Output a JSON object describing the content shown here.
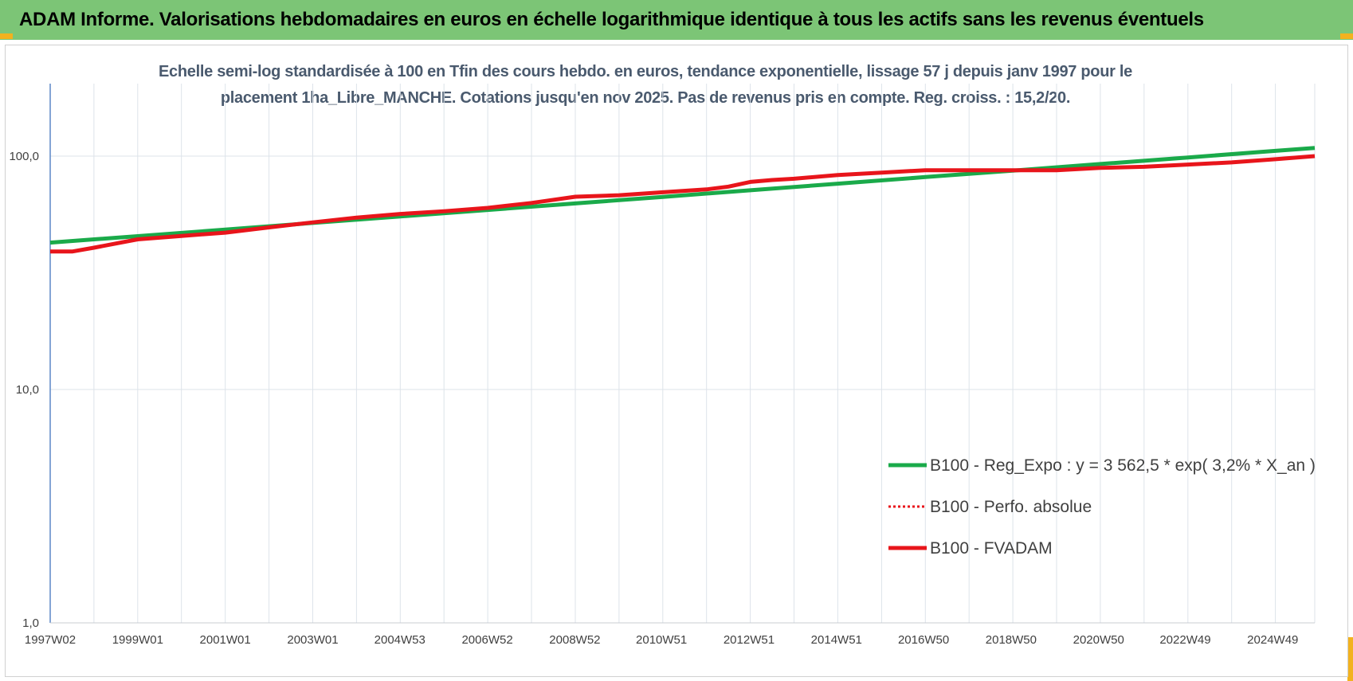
{
  "header": {
    "title": "ADAM Informe. Valorisations hebdomadaires en euros en échelle logarithmique identique à tous les actifs sans les revenus éventuels"
  },
  "colors": {
    "header_bg": "#7cc576",
    "corner_accent": "#f2b21f",
    "trend": "#1aaa4a",
    "fvadam": "#e8151b",
    "perfo": "#e8151b",
    "grid": "#dde3ea",
    "axis": "#5b87c7"
  },
  "chart_data": {
    "type": "line",
    "title": "Echelle semi-log standardisée à 100 en Tfin des cours hebdo. en euros, tendance exponentielle, lissage 57 j depuis janv 1997 pour le placement 1ha_Libre_MANCHE. Cotations jusqu'en nov 2025. Pas de revenus pris en compte. Reg. croiss. : 15,2/20.",
    "xlabel": "",
    "ylabel": "",
    "y_scale": "log",
    "ylim": [
      1,
      200
    ],
    "y_ticks": [
      1,
      10,
      100
    ],
    "y_tick_labels": [
      "1,0",
      "10,0",
      "100,0"
    ],
    "x_range": [
      1997.0,
      2025.9
    ],
    "x_ticks": [
      1997.0,
      1999.0,
      2001.0,
      2003.0,
      2004.99,
      2006.99,
      2008.99,
      2010.97,
      2012.97,
      2014.97,
      2016.96,
      2018.96,
      2020.96,
      2022.94,
      2024.94
    ],
    "x_tick_labels": [
      "1997W02",
      "1999W01",
      "2001W01",
      "2003W01",
      "2004W53",
      "2006W52",
      "2008W52",
      "2010W51",
      "2012W51",
      "2014W51",
      "2016W50",
      "2018W50",
      "2020W50",
      "2022W49",
      "2024W49"
    ],
    "grid": true,
    "legend_position": "bottom-right",
    "series": [
      {
        "name": "B100 - Reg_Expo : y = 3 562,5 * exp( 3,2% *  X_an )",
        "style": "solid-thin",
        "color": "#1aaa4a",
        "x": [
          1997.0,
          1999.0,
          2001.0,
          2003.0,
          2005.0,
          2007.0,
          2009.0,
          2011.0,
          2013.0,
          2015.0,
          2017.0,
          2019.0,
          2021.0,
          2023.0,
          2025.0,
          2025.9
        ],
        "values": [
          42.6,
          45.4,
          48.4,
          51.7,
          55.1,
          58.8,
          62.7,
          66.9,
          71.4,
          76.2,
          81.3,
          86.7,
          92.5,
          98.7,
          105.3,
          108.4
        ]
      },
      {
        "name": "B100 - Perfo. absolue",
        "style": "dotted",
        "color": "#e8151b",
        "x": [
          1997.0,
          1997.5,
          1998.0,
          1999.0,
          2000.0,
          2001.0,
          2002.0,
          2003.0,
          2004.0,
          2005.0,
          2006.0,
          2007.0,
          2008.0,
          2009.0,
          2010.0,
          2011.0,
          2012.0,
          2012.5,
          2013.0,
          2013.5,
          2014.0,
          2015.0,
          2016.0,
          2017.0,
          2018.0,
          2019.0,
          2020.0,
          2021.0,
          2022.0,
          2023.0,
          2024.0,
          2025.0,
          2025.9
        ],
        "values": [
          39.0,
          39.0,
          40.5,
          44.0,
          45.5,
          47.0,
          49.5,
          52.0,
          54.5,
          56.5,
          58.0,
          60.0,
          63.0,
          67.0,
          68.0,
          70.0,
          72.0,
          74.0,
          77.5,
          79.0,
          80.0,
          83.0,
          85.0,
          87.0,
          87.0,
          87.0,
          87.0,
          89.0,
          90.0,
          92.0,
          94.0,
          97.0,
          100.0
        ]
      },
      {
        "name": "B100 - FVADAM",
        "style": "solid-thick",
        "color": "#e8151b",
        "x": [
          1997.0,
          1997.5,
          1998.0,
          1999.0,
          2000.0,
          2001.0,
          2002.0,
          2003.0,
          2004.0,
          2005.0,
          2006.0,
          2007.0,
          2008.0,
          2009.0,
          2010.0,
          2011.0,
          2012.0,
          2012.5,
          2013.0,
          2013.5,
          2014.0,
          2015.0,
          2016.0,
          2017.0,
          2018.0,
          2019.0,
          2020.0,
          2021.0,
          2022.0,
          2023.0,
          2024.0,
          2025.0,
          2025.9
        ],
        "values": [
          39.0,
          39.0,
          40.5,
          44.0,
          45.5,
          47.0,
          49.5,
          52.0,
          54.5,
          56.5,
          58.0,
          60.0,
          63.0,
          67.0,
          68.0,
          70.0,
          72.0,
          74.0,
          77.5,
          79.0,
          80.0,
          83.0,
          85.0,
          87.0,
          87.0,
          87.0,
          87.0,
          89.0,
          90.0,
          92.0,
          94.0,
          97.0,
          100.0
        ]
      }
    ]
  }
}
